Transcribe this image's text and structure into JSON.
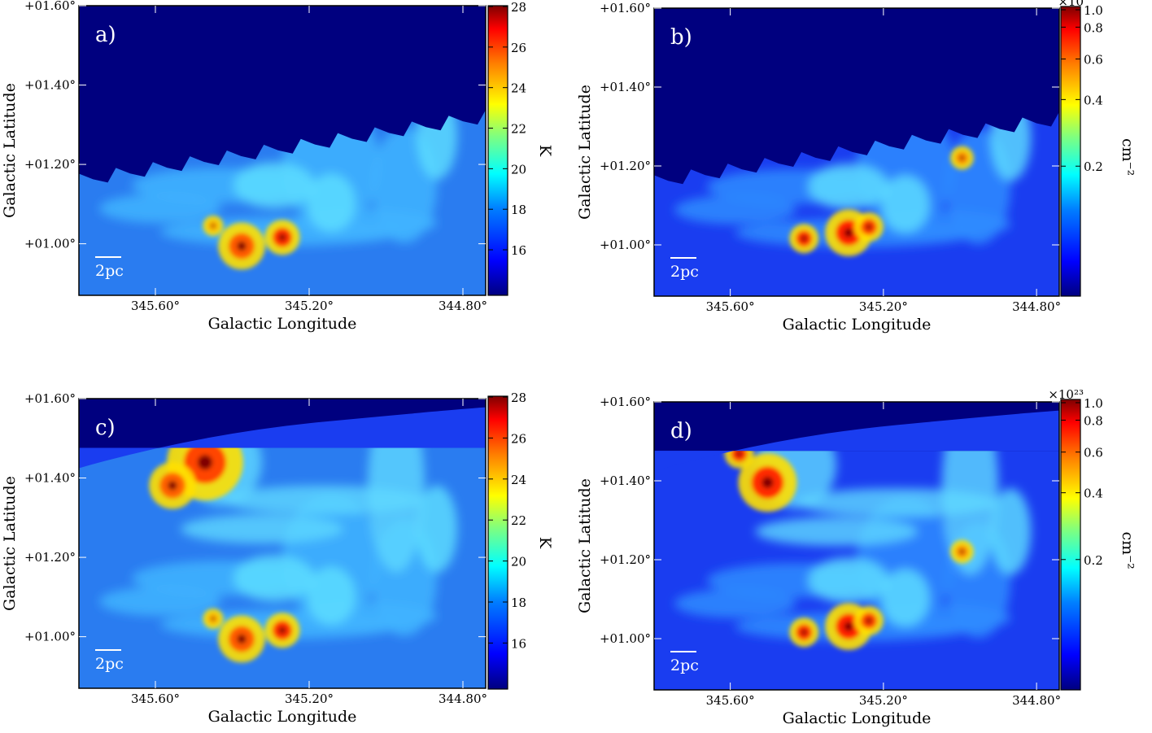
{
  "panels": [
    {
      "id": "a",
      "label": "a)",
      "xlabel": "Galactic Longitude",
      "ylabel": "Galactic Latitude",
      "xticks": [
        "345.60°",
        "345.20°",
        "344.80°"
      ],
      "yticks": [
        "+01.60°",
        "+01.40°",
        "+01.20°",
        "+01.00°"
      ],
      "scalebar": "2pc",
      "colorbar": {
        "ticks": [
          "28",
          "26",
          "24",
          "22",
          "20",
          "18",
          "16"
        ],
        "unit": "K",
        "multiplier": ""
      },
      "kind": "temperature",
      "coverage": "partial"
    },
    {
      "id": "b",
      "label": "b)",
      "xlabel": "Galactic Longitude",
      "ylabel": "Galactic Latitude",
      "xticks": [
        "345.60°",
        "345.20°",
        "344.80°"
      ],
      "yticks": [
        "+01.60°",
        "+01.40°",
        "+01.20°",
        "+01.00°"
      ],
      "scalebar": "2pc",
      "colorbar": {
        "ticks": [
          "1.0",
          "0.8",
          "0.6",
          "0.4",
          "0.2"
        ],
        "unit": "cm⁻²",
        "multiplier": "×10"
      },
      "kind": "column",
      "coverage": "partial"
    },
    {
      "id": "c",
      "label": "c)",
      "xlabel": "Galactic Longitude",
      "ylabel": "Galactic Latitude",
      "xticks": [
        "345.60°",
        "345.20°",
        "344.80°"
      ],
      "yticks": [
        "+01.60°",
        "+01.40°",
        "+01.20°",
        "+01.00°"
      ],
      "scalebar": "2pc",
      "colorbar": {
        "ticks": [
          "28",
          "26",
          "24",
          "22",
          "20",
          "18",
          "16"
        ],
        "unit": "K",
        "multiplier": ""
      },
      "kind": "temperature",
      "coverage": "full"
    },
    {
      "id": "d",
      "label": "d)",
      "xlabel": "Galactic Longitude",
      "ylabel": "Galactic Latitude",
      "xticks": [
        "345.60°",
        "345.20°",
        "344.80°"
      ],
      "yticks": [
        "+01.60°",
        "+01.40°",
        "+01.20°",
        "+01.00°"
      ],
      "scalebar": "2pc",
      "colorbar": {
        "ticks": [
          "1.0",
          "0.8",
          "0.6",
          "0.4",
          "0.2"
        ],
        "unit": "cm⁻²",
        "multiplier": "×10²³"
      },
      "kind": "column",
      "coverage": "full"
    }
  ],
  "colormap": [
    "#00007f",
    "#0000ff",
    "#007fff",
    "#00ffff",
    "#7fff7f",
    "#ffff00",
    "#ff7f00",
    "#ff0000",
    "#7f0000"
  ]
}
